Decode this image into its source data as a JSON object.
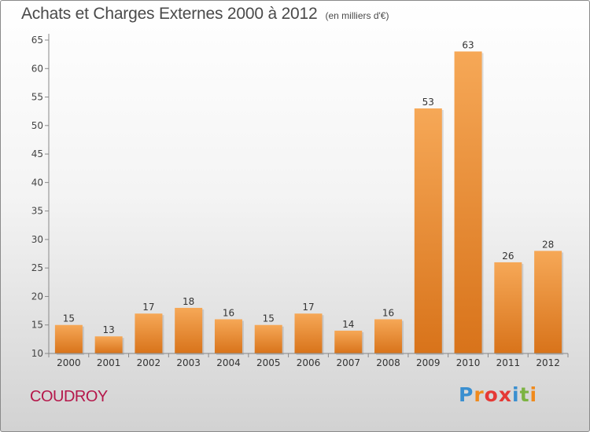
{
  "title": "Achats et Charges Externes 2000 à 2012",
  "subtitle": "(en milliers d'€)",
  "location": "COUDROY",
  "brand": "Proxiti",
  "brand_colors": [
    "#3a8fd0",
    "#f08a1c",
    "#e53935",
    "#e53935",
    "#3a8fd0",
    "#7cb342",
    "#f08a1c"
  ],
  "colors": {
    "bar_top": "#f6a857",
    "bar_bottom": "#d8731a",
    "title": "#4a4a4a",
    "location": "#b5174a"
  },
  "chart_data": {
    "type": "bar",
    "title": "Achats et Charges Externes 2000 à 2012",
    "subtitle": "(en milliers d'€)",
    "categories": [
      "2000",
      "2001",
      "2002",
      "2003",
      "2004",
      "2005",
      "2006",
      "2007",
      "2008",
      "2009",
      "2010",
      "2011",
      "2012"
    ],
    "values": [
      15,
      13,
      17,
      18,
      16,
      15,
      17,
      14,
      16,
      53,
      63,
      26,
      28
    ],
    "ylim": [
      10,
      65
    ],
    "yticks": [
      10,
      15,
      20,
      25,
      30,
      35,
      40,
      45,
      50,
      55,
      60,
      65
    ],
    "grid": false,
    "legend": "none"
  }
}
